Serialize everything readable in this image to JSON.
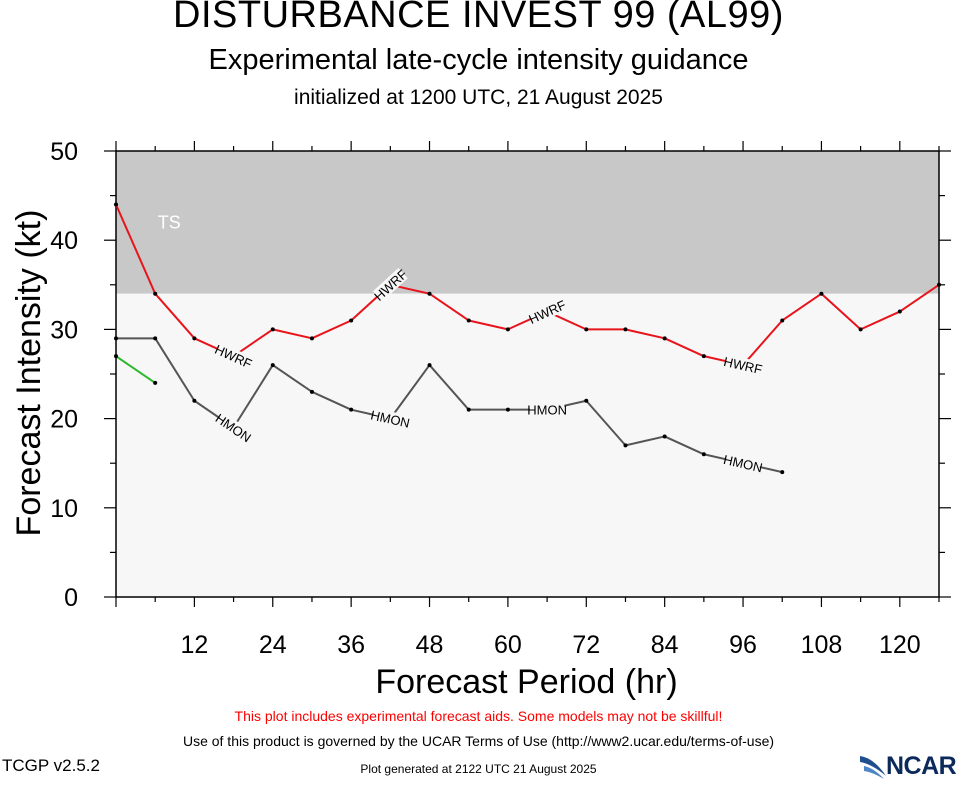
{
  "header": {
    "title": "DISTURBANCE INVEST 99 (AL99)",
    "subtitle": "Experimental late-cycle intensity guidance",
    "init_line": "initialized at 1200 UTC, 21 August 2025"
  },
  "chart_data": {
    "type": "line",
    "title": "DISTURBANCE INVEST 99 (AL99)",
    "xlabel": "Forecast Period (hr)",
    "ylabel": "Forecast Intensity (kt)",
    "xlim": [
      0,
      126
    ],
    "ylim": [
      0,
      50
    ],
    "x_ticks": [
      12,
      24,
      36,
      48,
      60,
      72,
      84,
      96,
      108,
      120
    ],
    "y_ticks": [
      0,
      10,
      20,
      30,
      40,
      50
    ],
    "bands": [
      {
        "label": "TS",
        "from": 34,
        "to": 50,
        "color": "#c8c8c8"
      },
      {
        "label": "",
        "from": 0,
        "to": 34,
        "color": "#f7f7f7"
      }
    ],
    "series": [
      {
        "name": "HWRF",
        "color": "#e8141c",
        "x": [
          0,
          6,
          12,
          18,
          24,
          30,
          36,
          42,
          48,
          54,
          60,
          66,
          72,
          78,
          84,
          90,
          96,
          102,
          108,
          114,
          120,
          126
        ],
        "values": [
          44,
          34,
          29,
          27,
          30,
          29,
          31,
          35,
          34,
          31,
          30,
          32,
          30,
          30,
          29,
          27,
          26,
          31,
          34,
          30,
          32,
          35
        ],
        "label_positions": [
          18,
          42,
          66,
          96
        ]
      },
      {
        "name": "HMON",
        "color": "#555555",
        "x": [
          0,
          6,
          12,
          18,
          24,
          30,
          36,
          42,
          48,
          54,
          60,
          66,
          72,
          78,
          84,
          90,
          96,
          102
        ],
        "values": [
          29,
          29,
          22,
          19,
          26,
          23,
          21,
          20,
          26,
          21,
          21,
          21,
          22,
          17,
          18,
          16,
          15,
          14
        ],
        "label_positions": [
          18,
          42,
          66,
          96
        ]
      },
      {
        "name": "",
        "color": "#2db82d",
        "x": [
          0,
          6
        ],
        "values": [
          27,
          24
        ],
        "label_positions": []
      }
    ]
  },
  "footer": {
    "warning": "This plot includes experimental forecast aids. Some models may not be skillful!",
    "terms": "Use of this product is governed by the UCAR Terms of Use (http://www2.ucar.edu/terms-of-use)",
    "generated": "Plot generated at 2122 UTC   21 August 2025",
    "version": "TCGP v2.5.2",
    "logo_text": "NCAR"
  }
}
